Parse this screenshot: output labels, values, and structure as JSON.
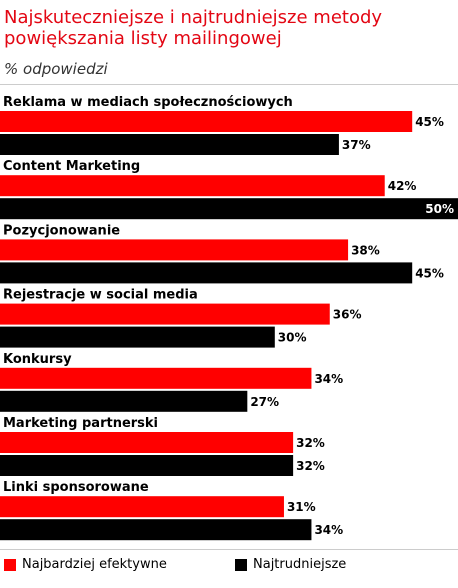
{
  "chart_data": {
    "type": "bar",
    "orientation": "horizontal",
    "title": "Najskuteczniejsze i najtrudniejsze metody powiększania listy mailingowej",
    "subtitle": "% odpowiedzi",
    "unit": "%",
    "categories": [
      "Reklama w mediach społecznościowych",
      "Content Marketing",
      "Pozycjonowanie",
      "Rejestracje w social media",
      "Konkursy",
      "Marketing partnerski",
      "Linki sponsorowane"
    ],
    "series": [
      {
        "name": "Najbardziej efektywne",
        "color": "#ff0000",
        "values": [
          45,
          42,
          38,
          36,
          34,
          32,
          31
        ]
      },
      {
        "name": "Najtrudniejsze",
        "color": "#000000",
        "values": [
          37,
          50,
          45,
          30,
          27,
          32,
          34
        ]
      }
    ],
    "xlim": [
      0,
      50
    ],
    "legend_position": "bottom",
    "grid": false
  }
}
